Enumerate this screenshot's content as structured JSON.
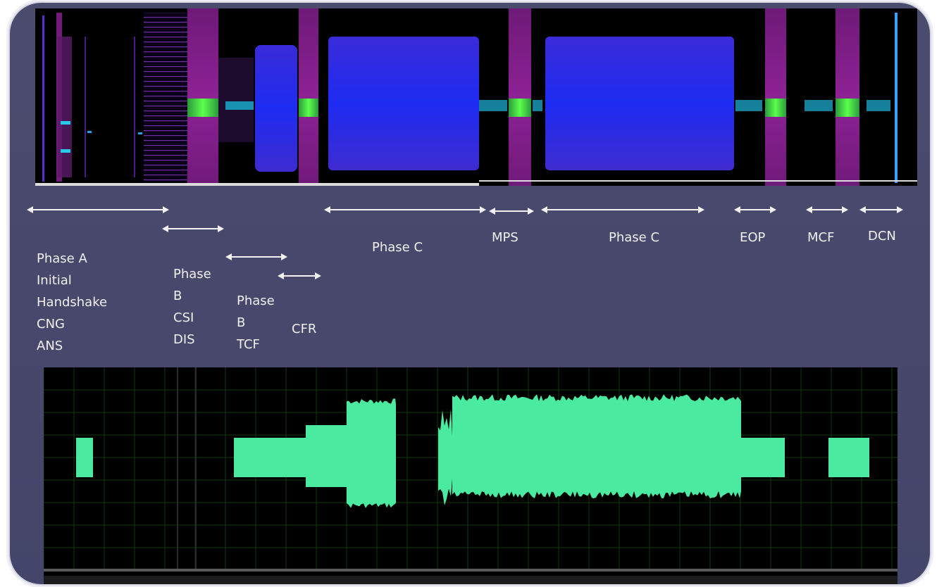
{
  "phases": [
    {
      "id": "phase-a",
      "lines": [
        "Phase A",
        "Initial",
        "Handshake",
        "CNG",
        "ANS"
      ]
    },
    {
      "id": "phase-b-csi",
      "lines": [
        "Phase",
        "B",
        "CSI",
        "DIS"
      ]
    },
    {
      "id": "phase-b-tcf",
      "lines": [
        "Phase",
        "B",
        "TCF"
      ]
    },
    {
      "id": "cfr",
      "lines": [
        "CFR"
      ]
    },
    {
      "id": "phase-c-1",
      "lines": [
        "Phase C"
      ]
    },
    {
      "id": "mps",
      "lines": [
        "MPS"
      ]
    },
    {
      "id": "phase-c-2",
      "lines": [
        "Phase C"
      ]
    },
    {
      "id": "eop",
      "lines": [
        "EOP"
      ]
    },
    {
      "id": "mcf",
      "lines": [
        "MCF"
      ]
    },
    {
      "id": "dcn",
      "lines": [
        "DCN"
      ]
    }
  ],
  "colors": {
    "panel": "#48496c",
    "spectrogram_background": "#000000",
    "spectrogram_magenta": "#8a1c8c",
    "spectrogram_blue": "#2020e0",
    "spectrogram_hot": "#3cff4a",
    "waveform_background": "#000000",
    "waveform_fill": "#4aeaa0",
    "grid": "#0d3a0d"
  }
}
